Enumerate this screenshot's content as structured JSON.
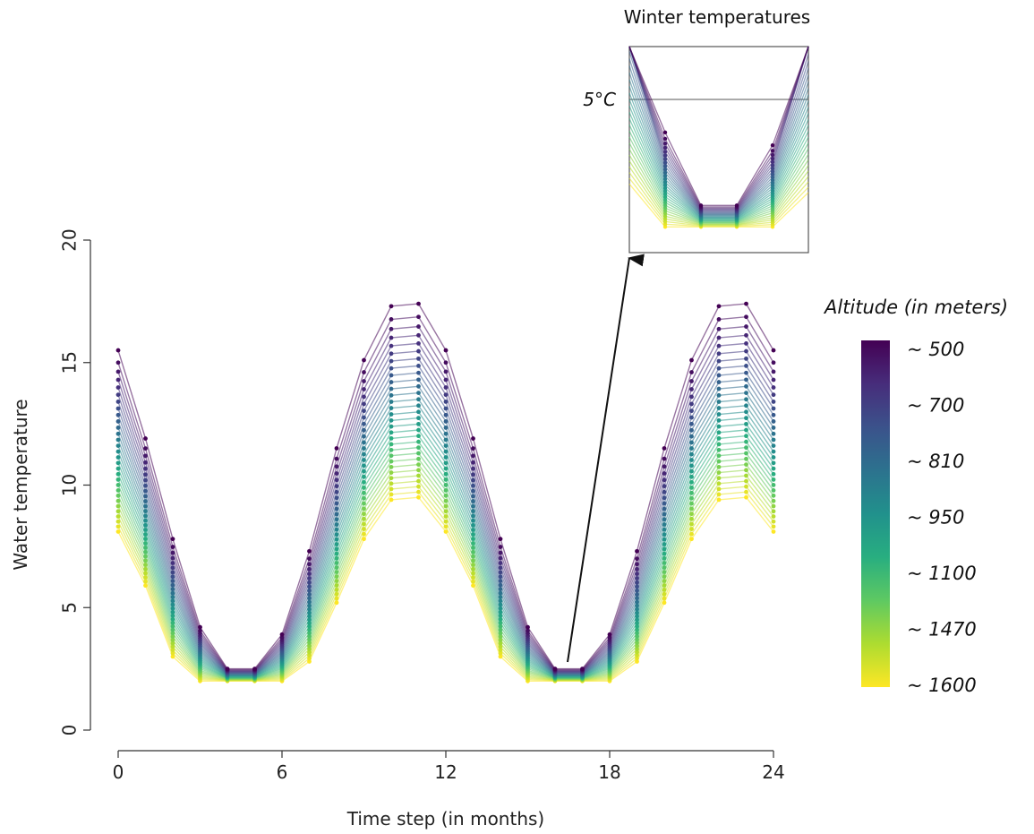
{
  "chart_data": {
    "type": "line",
    "xlabel": "Time step (in months)",
    "ylabel": "Water temperature",
    "xlim": [
      0,
      24
    ],
    "ylim": [
      0,
      20
    ],
    "xticks": [
      "0",
      "6",
      "12",
      "18",
      "24"
    ],
    "yticks": [
      "0",
      "5",
      "10",
      "15",
      "20"
    ],
    "grid": false,
    "x": [
      0,
      1,
      2,
      3,
      4,
      5,
      6,
      7,
      8,
      9,
      10,
      11,
      12,
      13,
      14,
      15,
      16,
      17,
      18,
      19,
      20,
      21,
      22,
      23,
      24
    ],
    "series_profile": {
      "low_altitude_500m": [
        15.5,
        11.9,
        7.8,
        4.2,
        2.5,
        2.5,
        3.9,
        7.3,
        11.5,
        15.1,
        17.3,
        17.4,
        15.5,
        11.9,
        7.8,
        4.2,
        2.5,
        2.5,
        3.9,
        7.3,
        11.5,
        15.1,
        17.3,
        17.4,
        15.5
      ],
      "high_altitude_1600m": [
        8.1,
        5.9,
        3.0,
        2.0,
        2.0,
        2.0,
        2.0,
        2.8,
        5.2,
        7.8,
        9.4,
        9.5,
        8.1,
        5.9,
        3.0,
        2.0,
        2.0,
        2.0,
        2.0,
        2.8,
        5.2,
        7.8,
        9.4,
        9.5,
        8.1
      ],
      "n_series": 30
    },
    "legend": {
      "title": "Altitude (in meters)",
      "placement": "right",
      "labels": [
        "~ 500",
        "~ 700",
        "~ 810",
        "~ 950",
        "~ 1100",
        "~ 1470",
        "~ 1600"
      ]
    },
    "colormap": [
      "#440154",
      "#472d7b",
      "#3b528b",
      "#2c728e",
      "#21918c",
      "#28ae80",
      "#5ec962",
      "#addc30",
      "#fde725"
    ],
    "inset": {
      "title": "Winter temperatures",
      "reference_label": "5°C",
      "reference_value": 5
    }
  }
}
